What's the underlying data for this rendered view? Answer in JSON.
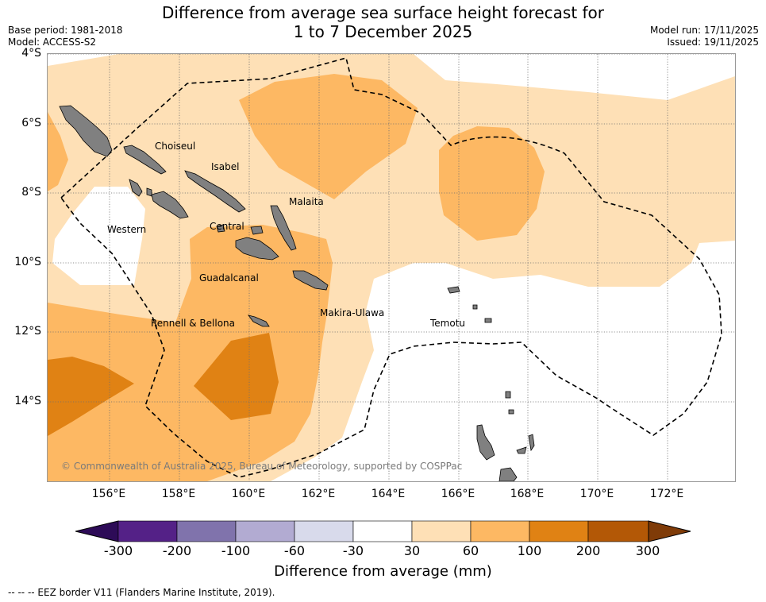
{
  "title_line1": "Difference from average sea surface height forecast for",
  "title_line2": "1 to 7 December 2025",
  "meta_left": {
    "base_period": "Base period: 1981-2018",
    "model": "Model: ACCESS-S2"
  },
  "meta_right": {
    "model_run": "Model run: 17/11/2025",
    "issued": "Issued: 19/11/2025"
  },
  "x_ticks": [
    "156°E",
    "158°E",
    "160°E",
    "162°E",
    "164°E",
    "166°E",
    "168°E",
    "170°E",
    "172°E"
  ],
  "y_ticks": [
    "4°S",
    "6°S",
    "8°S",
    "10°S",
    "12°S",
    "14°S"
  ],
  "provinces": {
    "choiseul": "Choiseul",
    "isabel": "Isabel",
    "malaita": "Malaita",
    "western": "Western",
    "central": "Central",
    "guadalcanal": "Guadalcanal",
    "makira": "Makira-Ulawa",
    "rennell": "Rennell & Bellona",
    "temotu": "Temotu"
  },
  "copyright": "© Commonwealth of Australia 2025, Bureau of Meteorology, supported by COSPPac",
  "colorbar": {
    "ticks": [
      "-300",
      "-200",
      "-100",
      "-60",
      "-30",
      "30",
      "60",
      "100",
      "200",
      "300"
    ],
    "colors": [
      "#2d0b57",
      "#542187",
      "#8073ac",
      "#b2abd2",
      "#d8daeb",
      "#ffffff",
      "#fee0b6",
      "#fdb863",
      "#e08214",
      "#b35806",
      "#7f3b08"
    ],
    "title": "Difference from average (mm)"
  },
  "footnote": "--  --  -- EEZ border V11 (Flanders Marine Institute, 2019)."
}
